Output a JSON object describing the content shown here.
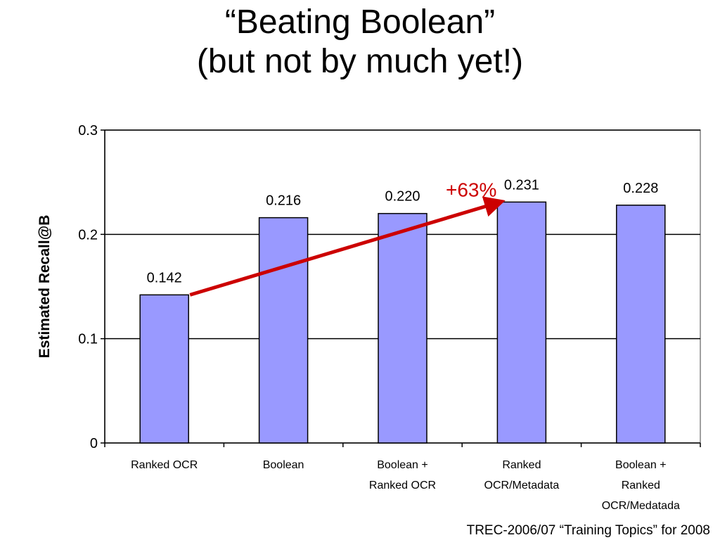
{
  "slide": {
    "title_line1": "“Beating Boolean”",
    "title_line2": "(but not by much yet!)",
    "footer": "TREC-2006/07 “Training Topics” for 2008"
  },
  "chart_data": {
    "type": "bar",
    "categories": [
      [
        "Ranked OCR"
      ],
      [
        "Boolean"
      ],
      [
        "Boolean +",
        "Ranked OCR"
      ],
      [
        "Ranked",
        "OCR/Metadata"
      ],
      [
        "Boolean +",
        "Ranked",
        "OCR/Medatada"
      ]
    ],
    "values": [
      0.142,
      0.216,
      0.22,
      0.231,
      0.228
    ],
    "data_labels": [
      "0.142",
      "0.216",
      "0.220",
      "0.231",
      "0.228"
    ],
    "ylabel": "Estimated Recall@B",
    "ylim": [
      0,
      0.3
    ],
    "yticks": [
      0,
      0.1,
      0.2,
      0.3
    ],
    "ytick_labels": [
      "0",
      "0.1",
      "0.2",
      "0.3"
    ],
    "grid": true,
    "bar_color": "#9999ff",
    "annotation": {
      "text": "+63%",
      "color": "#cc0000",
      "from_category_index": 0,
      "to_category_index": 3
    }
  }
}
